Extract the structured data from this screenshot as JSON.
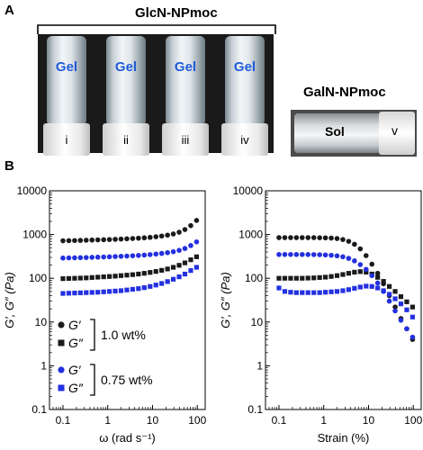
{
  "panel_a": {
    "letter": "A",
    "glcn_title": "GlcN-NPmoc",
    "galn_title": "GalN-NPmoc",
    "gel_vials": [
      {
        "state": "Gel",
        "num": "i"
      },
      {
        "state": "Gel",
        "num": "ii"
      },
      {
        "state": "Gel",
        "num": "iii"
      },
      {
        "state": "Gel",
        "num": "iv"
      }
    ],
    "sol_vial": {
      "state": "Sol",
      "num": "v"
    }
  },
  "panel_b": {
    "letter": "B"
  },
  "colors": {
    "black_series": "#1a1a1a",
    "blue_series": "#2330e0",
    "gel_text": "#1f5bd8"
  },
  "chart_data": [
    {
      "type": "scatter",
      "xlabel": "ω (rad s⁻¹)",
      "ylabel": "G′, G″ (Pa)",
      "xscale": "log",
      "yscale": "log",
      "xlim": [
        0.05,
        150
      ],
      "ylim": [
        0.1,
        10000
      ],
      "x_ticks": [
        "0.1",
        "1",
        "10",
        "100"
      ],
      "y_ticks": [
        "0.1",
        "1",
        "10",
        "100",
        "1000",
        "10000"
      ],
      "legend": {
        "groups": [
          {
            "entries": [
              "G′",
              "G″"
            ],
            "label": "1.0 wt%"
          },
          {
            "entries": [
              "G′",
              "G″"
            ],
            "label": "0.75 wt%"
          }
        ]
      },
      "x": [
        0.1,
        0.135,
        0.182,
        0.245,
        0.33,
        0.445,
        0.6,
        0.81,
        1.09,
        1.47,
        1.98,
        2.67,
        3.6,
        4.85,
        6.54,
        8.82,
        11.9,
        16,
        21.6,
        29.1,
        39.3,
        52.9,
        71.4,
        96.2
      ],
      "series": [
        {
          "name": "G′",
          "group": "1.0 wt%",
          "marker": "circle",
          "color": "#1a1a1a",
          "values": [
            720,
            725,
            730,
            735,
            740,
            748,
            755,
            762,
            770,
            778,
            788,
            800,
            812,
            825,
            842,
            862,
            890,
            925,
            970,
            1030,
            1130,
            1300,
            1600,
            2100
          ]
        },
        {
          "name": "G″",
          "group": "1.0 wt%",
          "marker": "square",
          "color": "#1a1a1a",
          "values": [
            98,
            99,
            100,
            101,
            102,
            104,
            106,
            108,
            110,
            112,
            115,
            118,
            121,
            125,
            130,
            136,
            143,
            152,
            163,
            178,
            198,
            225,
            265,
            310
          ]
        },
        {
          "name": "G′",
          "group": "0.75 wt%",
          "marker": "circle",
          "color": "#2330e0",
          "values": [
            290,
            292,
            294,
            296,
            298,
            301,
            304,
            307,
            310,
            314,
            318,
            322,
            327,
            333,
            340,
            348,
            358,
            370,
            385,
            405,
            435,
            480,
            560,
            680
          ]
        },
        {
          "name": "G″",
          "group": "0.75 wt%",
          "marker": "square",
          "color": "#2330e0",
          "values": [
            45,
            45.5,
            46,
            46.5,
            47,
            47.5,
            48,
            49,
            50,
            51,
            52,
            54,
            56,
            58,
            61,
            65,
            70,
            76,
            84,
            95,
            108,
            125,
            150,
            178
          ]
        }
      ]
    },
    {
      "type": "scatter",
      "xlabel": "Strain (%)",
      "ylabel": "G′, G″ (Pa)",
      "xscale": "log",
      "yscale": "log",
      "xlim": [
        0.05,
        150
      ],
      "ylim": [
        0.1,
        10000
      ],
      "x_ticks": [
        "0.1",
        "1",
        "10",
        "100"
      ],
      "y_ticks": [
        "0.1",
        "1",
        "10",
        "100",
        "1000",
        "10000"
      ],
      "x": [
        0.1,
        0.135,
        0.182,
        0.245,
        0.33,
        0.445,
        0.6,
        0.81,
        1.09,
        1.47,
        1.98,
        2.67,
        3.6,
        4.85,
        6.54,
        8.82,
        11.9,
        16,
        21.6,
        29.1,
        39.3,
        52.9,
        71.4,
        96.2
      ],
      "series": [
        {
          "name": "G′",
          "group": "1.0 wt%",
          "marker": "circle",
          "color": "#1a1a1a",
          "values": [
            850,
            850,
            850,
            850,
            850,
            850,
            848,
            845,
            840,
            830,
            810,
            770,
            700,
            600,
            470,
            330,
            210,
            130,
            75,
            40,
            22,
            12,
            7,
            4
          ]
        },
        {
          "name": "G″",
          "group": "1.0 wt%",
          "marker": "square",
          "color": "#1a1a1a",
          "values": [
            100,
            100,
            100,
            100,
            100,
            101,
            102,
            104,
            106,
            110,
            115,
            122,
            130,
            138,
            142,
            138,
            125,
            105,
            85,
            65,
            50,
            38,
            29,
            22
          ]
        },
        {
          "name": "G′",
          "group": "0.75 wt%",
          "marker": "circle",
          "color": "#2330e0",
          "values": [
            350,
            350,
            350,
            350,
            350,
            349,
            348,
            346,
            342,
            336,
            326,
            310,
            285,
            250,
            205,
            160,
            115,
            78,
            50,
            30,
            18,
            11,
            7,
            4.5
          ]
        },
        {
          "name": "G″",
          "group": "0.75 wt%",
          "marker": "square",
          "color": "#2330e0",
          "values": [
            60,
            50,
            48,
            47,
            47,
            47,
            47,
            47,
            48,
            49,
            50,
            52,
            55,
            59,
            63,
            66,
            65,
            60,
            52,
            43,
            34,
            26,
            19,
            13
          ]
        }
      ]
    }
  ]
}
